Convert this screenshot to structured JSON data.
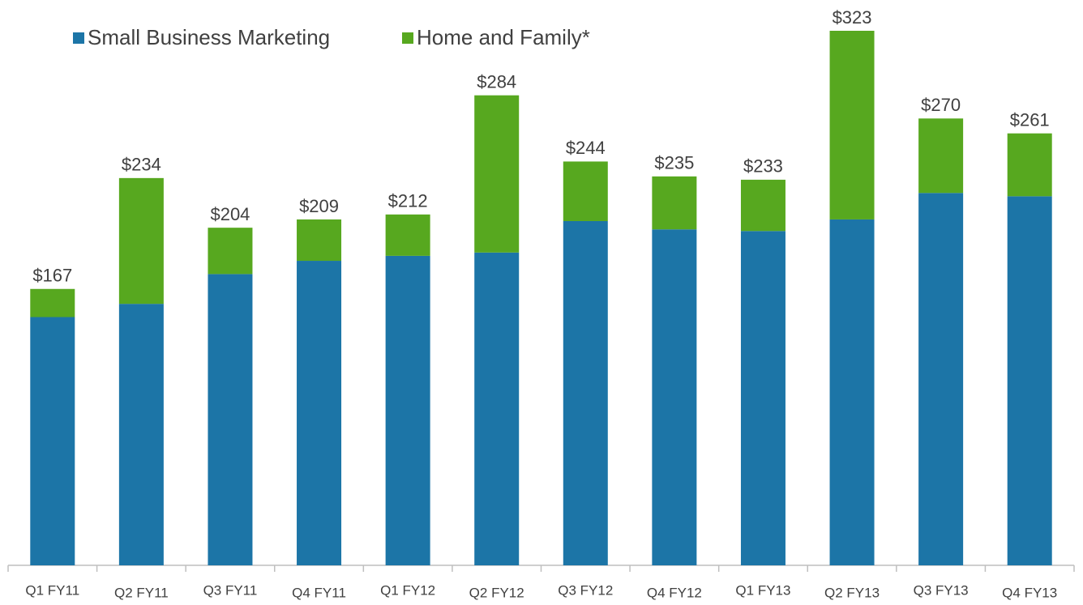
{
  "chart_data": {
    "type": "stacked_bar",
    "categories": [
      "Q1 FY11",
      "Q2 FY11",
      "Q3 FY11",
      "Q4 FY11",
      "Q1 FY12",
      "Q2 FY12",
      "Q3 FY12",
      "Q4 FY12",
      "Q1 FY13",
      "Q2 FY13",
      "Q3 FY13",
      "Q4 FY13"
    ],
    "series": [
      {
        "name": "Small Business Marketing",
        "color": "#1c75a7",
        "values": [
          150,
          158,
          176,
          184,
          187,
          189,
          208,
          203,
          202,
          209,
          225,
          223
        ]
      },
      {
        "name": "Home and Family*",
        "color": "#57a81f",
        "values": [
          17,
          76,
          28,
          25,
          25,
          95,
          36,
          32,
          31,
          114,
          45,
          38
        ]
      }
    ],
    "total_labels": [
      "$167",
      "$234",
      "$204",
      "$209",
      "$212",
      "$284",
      "$244",
      "$235",
      "$233",
      "$323",
      "$270",
      "$261"
    ],
    "legend": "top-left"
  }
}
